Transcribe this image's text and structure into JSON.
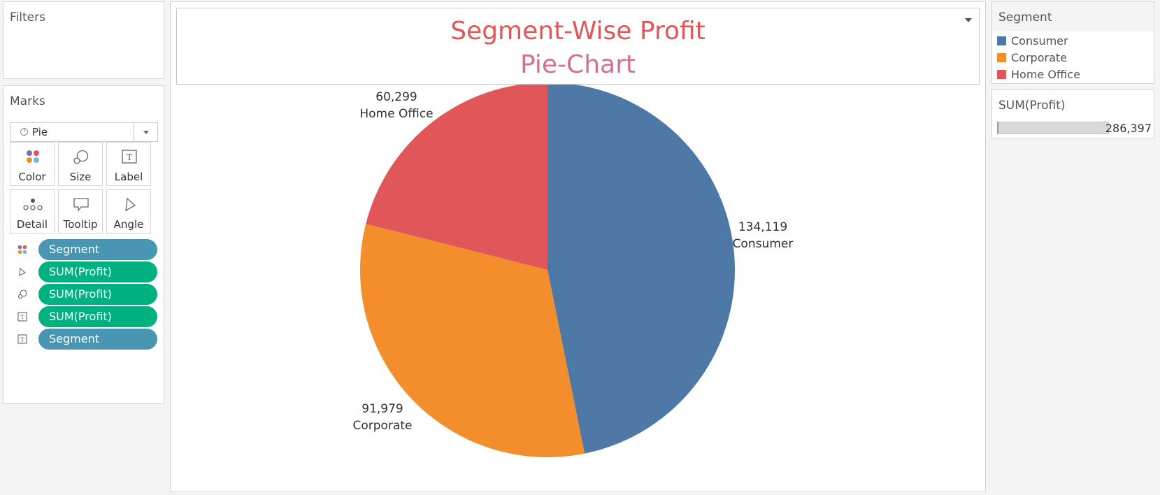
{
  "filters": {
    "title": "Filters"
  },
  "marks": {
    "title": "Marks",
    "mark_type": "Pie",
    "buttons": [
      {
        "label": "Color",
        "icon": "color-dots-icon"
      },
      {
        "label": "Size",
        "icon": "size-icon"
      },
      {
        "label": "Label",
        "icon": "label-icon"
      },
      {
        "label": "Detail",
        "icon": "detail-icon"
      },
      {
        "label": "Tooltip",
        "icon": "tooltip-icon"
      },
      {
        "label": "Angle",
        "icon": "angle-icon"
      }
    ],
    "pills": [
      {
        "label": "Segment",
        "kind": "dimension",
        "icon": "color-dots-icon"
      },
      {
        "label": "SUM(Profit)",
        "kind": "measure",
        "icon": "angle-icon"
      },
      {
        "label": "SUM(Profit)",
        "kind": "measure",
        "icon": "size-icon"
      },
      {
        "label": "SUM(Profit)",
        "kind": "measure",
        "icon": "label-icon"
      },
      {
        "label": "Segment",
        "kind": "dimension",
        "icon": "label-icon"
      }
    ]
  },
  "chart": {
    "title_line1": "Segment-Wise Profit",
    "title_line2": "Pie-Chart"
  },
  "chart_data": {
    "type": "pie",
    "title": "Segment-Wise Profit",
    "subtitle": "Pie-Chart",
    "start_angle_deg": 0,
    "direction": "clockwise",
    "slices": [
      {
        "category": "Consumer",
        "value": 134119,
        "value_label": "134,119",
        "color": "#4e79a7"
      },
      {
        "category": "Corporate",
        "value": 91979,
        "value_label": "91,979",
        "color": "#f28e2b"
      },
      {
        "category": "Home Office",
        "value": 60299,
        "value_label": "60,299",
        "color": "#e15759"
      }
    ]
  },
  "legend": {
    "title": "Segment",
    "items": [
      {
        "label": "Consumer",
        "color": "#4e79a7"
      },
      {
        "label": "Corporate",
        "color": "#f28e2b"
      },
      {
        "label": "Home Office",
        "color": "#e15759"
      }
    ]
  },
  "size_legend": {
    "title": "SUM(Profit)",
    "value": "286,397"
  }
}
